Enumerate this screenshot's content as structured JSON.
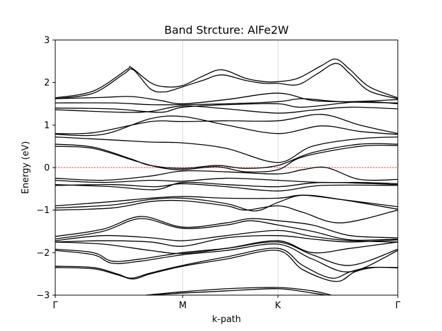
{
  "chart_data": {
    "type": "line",
    "title": "Band Strcture: AlFe2W",
    "xlabel": "k-path",
    "ylabel": "Energy (eV)",
    "ylim": [
      -3,
      3
    ],
    "xlim": [
      0,
      3.6
    ],
    "x_ticks": [
      {
        "label": "Γ",
        "x": 0
      },
      {
        "label": "M",
        "x": 1.34
      },
      {
        "label": "K",
        "x": 2.34
      },
      {
        "label": "Γ",
        "x": 3.6
      }
    ],
    "y_ticks": [
      -3,
      -2,
      -1,
      0,
      1,
      2,
      3
    ],
    "grid": "vertical lines at high-symmetry k-points",
    "fermi_level": 0,
    "colors": {
      "bands": "#000000",
      "fermi_line": "#ff0000",
      "grid": "#d3d3d3"
    },
    "series": [
      {
        "values": [
          [
            0,
            1.64
          ],
          [
            0.4,
            1.8
          ],
          [
            0.75,
            2.3
          ],
          [
            0.8,
            2.35
          ],
          [
            1.0,
            2.0
          ],
          [
            1.15,
            1.9
          ],
          [
            1.34,
            1.93
          ],
          [
            1.55,
            2.15
          ],
          [
            1.75,
            2.3
          ],
          [
            2.0,
            2.1
          ],
          [
            2.2,
            2.02
          ],
          [
            2.34,
            2.02
          ],
          [
            2.55,
            2.1
          ],
          [
            2.8,
            2.4
          ],
          [
            2.95,
            2.55
          ],
          [
            3.1,
            2.3
          ],
          [
            3.3,
            1.9
          ],
          [
            3.6,
            1.64
          ]
        ]
      },
      {
        "values": [
          [
            0,
            1.62
          ],
          [
            0.4,
            1.75
          ],
          [
            0.72,
            2.2
          ],
          [
            0.82,
            2.3
          ],
          [
            1.0,
            1.85
          ],
          [
            1.15,
            1.78
          ],
          [
            1.34,
            1.9
          ],
          [
            1.55,
            2.05
          ],
          [
            1.75,
            2.18
          ],
          [
            2.0,
            2.05
          ],
          [
            2.2,
            1.98
          ],
          [
            2.34,
            1.98
          ],
          [
            2.55,
            1.95
          ],
          [
            2.75,
            2.2
          ],
          [
            2.95,
            2.45
          ],
          [
            3.1,
            2.2
          ],
          [
            3.3,
            1.8
          ],
          [
            3.6,
            1.62
          ]
        ]
      },
      {
        "values": [
          [
            0,
            1.62
          ],
          [
            0.5,
            1.65
          ],
          [
            0.8,
            1.67
          ],
          [
            1.1,
            1.58
          ],
          [
            1.34,
            1.5
          ],
          [
            1.8,
            1.6
          ],
          [
            2.34,
            1.75
          ],
          [
            2.7,
            1.58
          ],
          [
            3.1,
            1.55
          ],
          [
            3.6,
            1.6
          ]
        ]
      },
      {
        "values": [
          [
            0,
            1.52
          ],
          [
            0.6,
            1.52
          ],
          [
            1.0,
            1.48
          ],
          [
            1.34,
            1.48
          ],
          [
            1.8,
            1.5
          ],
          [
            2.34,
            1.55
          ],
          [
            2.6,
            1.62
          ],
          [
            3.0,
            1.55
          ],
          [
            3.6,
            1.52
          ]
        ]
      },
      {
        "values": [
          [
            0,
            1.4
          ],
          [
            0.6,
            1.38
          ],
          [
            1.1,
            1.3
          ],
          [
            1.34,
            1.42
          ],
          [
            1.8,
            1.48
          ],
          [
            2.34,
            1.5
          ],
          [
            2.6,
            1.42
          ],
          [
            3.2,
            1.55
          ],
          [
            3.6,
            1.5
          ]
        ]
      },
      {
        "values": [
          [
            0,
            1.36
          ],
          [
            0.7,
            1.3
          ],
          [
            1.0,
            1.32
          ],
          [
            1.34,
            1.45
          ],
          [
            1.8,
            1.38
          ],
          [
            2.34,
            1.28
          ],
          [
            2.7,
            1.35
          ],
          [
            3.1,
            1.42
          ],
          [
            3.6,
            1.38
          ]
        ]
      },
      {
        "values": [
          [
            0,
            0.8
          ],
          [
            0.4,
            0.82
          ],
          [
            1.0,
            1.08
          ],
          [
            1.34,
            1.08
          ],
          [
            1.8,
            1.1
          ],
          [
            2.34,
            1.1
          ],
          [
            2.8,
            1.25
          ],
          [
            3.2,
            1.0
          ],
          [
            3.6,
            0.8
          ]
        ]
      },
      {
        "values": [
          [
            0,
            0.78
          ],
          [
            0.5,
            0.78
          ],
          [
            1.0,
            1.15
          ],
          [
            1.34,
            1.2
          ],
          [
            1.8,
            1.0
          ],
          [
            2.34,
            0.8
          ],
          [
            2.8,
            0.98
          ],
          [
            3.2,
            0.85
          ],
          [
            3.6,
            0.78
          ]
        ]
      },
      {
        "values": [
          [
            0,
            0.72
          ],
          [
            0.6,
            0.65
          ],
          [
            1.0,
            0.6
          ],
          [
            1.34,
            0.58
          ],
          [
            1.8,
            0.45
          ],
          [
            2.34,
            0.12
          ],
          [
            2.7,
            0.5
          ],
          [
            3.2,
            0.68
          ],
          [
            3.6,
            0.72
          ]
        ]
      },
      {
        "values": [
          [
            0,
            0.55
          ],
          [
            0.4,
            0.48
          ],
          [
            0.8,
            0.2
          ],
          [
            1.0,
            0.05
          ],
          [
            1.34,
            -0.02
          ],
          [
            1.7,
            0.05
          ],
          [
            2.0,
            -0.02
          ],
          [
            2.34,
            0.05
          ],
          [
            2.7,
            0.35
          ],
          [
            3.2,
            0.55
          ],
          [
            3.6,
            0.55
          ]
        ]
      },
      {
        "values": [
          [
            0,
            0.5
          ],
          [
            0.4,
            0.45
          ],
          [
            0.85,
            0.15
          ],
          [
            1.1,
            0.0
          ],
          [
            1.34,
            -0.05
          ],
          [
            1.7,
            0.02
          ],
          [
            2.0,
            -0.1
          ],
          [
            2.34,
            -0.05
          ],
          [
            2.6,
            0.25
          ],
          [
            3.2,
            0.5
          ],
          [
            3.6,
            0.52
          ]
        ]
      },
      {
        "values": [
          [
            0,
            -0.25
          ],
          [
            0.5,
            -0.3
          ],
          [
            1.0,
            -0.2
          ],
          [
            1.34,
            -0.08
          ],
          [
            1.8,
            -0.1
          ],
          [
            2.34,
            -0.15
          ],
          [
            2.6,
            -0.05
          ],
          [
            2.85,
            0.0
          ],
          [
            3.2,
            -0.28
          ],
          [
            3.6,
            -0.28
          ]
        ]
      },
      {
        "values": [
          [
            0,
            -0.3
          ],
          [
            0.5,
            -0.35
          ],
          [
            1.0,
            -0.3
          ],
          [
            1.34,
            -0.32
          ],
          [
            1.8,
            -0.25
          ],
          [
            2.34,
            -0.3
          ],
          [
            2.8,
            -0.35
          ],
          [
            3.2,
            -0.35
          ],
          [
            3.6,
            -0.38
          ]
        ]
      },
      {
        "values": [
          [
            0,
            -0.4
          ],
          [
            0.6,
            -0.45
          ],
          [
            1.05,
            -0.52
          ],
          [
            1.34,
            -0.35
          ],
          [
            1.8,
            -0.4
          ],
          [
            2.34,
            -0.45
          ],
          [
            2.8,
            -0.35
          ],
          [
            3.6,
            -0.4
          ]
        ]
      },
      {
        "values": [
          [
            0,
            -0.42
          ],
          [
            0.6,
            -0.4
          ],
          [
            1.05,
            -0.45
          ],
          [
            1.34,
            -0.38
          ],
          [
            1.8,
            -0.45
          ],
          [
            2.34,
            -0.55
          ],
          [
            2.8,
            -0.42
          ],
          [
            3.6,
            -0.42
          ]
        ]
      },
      {
        "values": [
          [
            0,
            -0.9
          ],
          [
            0.6,
            -0.8
          ],
          [
            1.0,
            -0.72
          ],
          [
            1.34,
            -0.68
          ],
          [
            1.8,
            -0.72
          ],
          [
            2.34,
            -0.72
          ],
          [
            2.6,
            -0.65
          ],
          [
            3.0,
            -0.75
          ],
          [
            3.6,
            -0.92
          ]
        ]
      },
      {
        "values": [
          [
            0,
            -0.95
          ],
          [
            0.6,
            -0.88
          ],
          [
            1.0,
            -0.75
          ],
          [
            1.34,
            -0.72
          ],
          [
            1.8,
            -0.85
          ],
          [
            2.1,
            -1.02
          ],
          [
            2.34,
            -0.82
          ],
          [
            2.6,
            -0.65
          ],
          [
            3.0,
            -0.75
          ],
          [
            3.6,
            -0.98
          ]
        ]
      },
      {
        "values": [
          [
            0,
            -1.0
          ],
          [
            0.6,
            -0.95
          ],
          [
            1.0,
            -0.8
          ],
          [
            1.34,
            -0.78
          ],
          [
            1.8,
            -0.9
          ],
          [
            2.0,
            -1.0
          ],
          [
            2.34,
            -0.9
          ],
          [
            2.6,
            -1.05
          ],
          [
            3.0,
            -1.3
          ],
          [
            3.6,
            -1.0
          ]
        ]
      },
      {
        "values": [
          [
            0,
            -1.62
          ],
          [
            0.5,
            -1.45
          ],
          [
            0.9,
            -1.15
          ],
          [
            1.34,
            -1.4
          ],
          [
            1.8,
            -1.3
          ],
          [
            2.05,
            -1.2
          ],
          [
            2.34,
            -1.25
          ],
          [
            2.7,
            -1.35
          ],
          [
            3.1,
            -1.6
          ],
          [
            3.6,
            -1.65
          ]
        ]
      },
      {
        "values": [
          [
            0,
            -1.68
          ],
          [
            0.5,
            -1.5
          ],
          [
            0.9,
            -1.2
          ],
          [
            1.34,
            -1.43
          ],
          [
            1.8,
            -1.35
          ],
          [
            2.05,
            -1.25
          ],
          [
            2.34,
            -1.35
          ],
          [
            2.7,
            -1.5
          ],
          [
            3.1,
            -1.7
          ],
          [
            3.6,
            -1.68
          ]
        ]
      },
      {
        "values": [
          [
            0,
            -1.72
          ],
          [
            0.5,
            -1.6
          ],
          [
            1.0,
            -1.65
          ],
          [
            1.34,
            -1.72
          ],
          [
            1.8,
            -1.6
          ],
          [
            2.34,
            -1.48
          ],
          [
            2.7,
            -1.62
          ],
          [
            3.1,
            -1.72
          ],
          [
            3.6,
            -1.75
          ]
        ]
      },
      {
        "values": [
          [
            0,
            -1.75
          ],
          [
            0.5,
            -1.72
          ],
          [
            1.0,
            -1.75
          ],
          [
            1.34,
            -1.85
          ],
          [
            1.8,
            -1.65
          ],
          [
            2.34,
            -1.6
          ],
          [
            2.7,
            -1.68
          ],
          [
            3.1,
            -1.75
          ],
          [
            3.6,
            -1.7
          ]
        ]
      },
      {
        "values": [
          [
            0,
            -1.75
          ],
          [
            0.5,
            -1.8
          ],
          [
            1.0,
            -1.95
          ],
          [
            1.34,
            -2.02
          ],
          [
            1.8,
            -1.9
          ],
          [
            2.34,
            -1.72
          ],
          [
            2.7,
            -2.0
          ],
          [
            3.1,
            -1.9
          ],
          [
            3.6,
            -1.75
          ]
        ]
      },
      {
        "values": [
          [
            0,
            -1.92
          ],
          [
            0.4,
            -2.0
          ],
          [
            0.6,
            -2.2
          ],
          [
            0.9,
            -2.15
          ],
          [
            1.34,
            -2.0
          ],
          [
            1.8,
            -1.9
          ],
          [
            2.34,
            -1.75
          ],
          [
            2.7,
            -2.05
          ],
          [
            3.1,
            -2.3
          ],
          [
            3.6,
            -1.92
          ]
        ]
      },
      {
        "values": [
          [
            0,
            -1.95
          ],
          [
            0.4,
            -2.05
          ],
          [
            0.6,
            -2.25
          ],
          [
            0.9,
            -2.2
          ],
          [
            1.34,
            -2.05
          ],
          [
            1.8,
            -1.95
          ],
          [
            2.34,
            -1.8
          ],
          [
            2.7,
            -2.15
          ],
          [
            3.1,
            -2.45
          ],
          [
            3.6,
            -1.95
          ]
        ]
      },
      {
        "values": [
          [
            0,
            -2.32
          ],
          [
            0.4,
            -2.35
          ],
          [
            0.65,
            -2.5
          ],
          [
            0.8,
            -2.6
          ],
          [
            1.0,
            -2.48
          ],
          [
            1.34,
            -2.3
          ],
          [
            1.8,
            -2.1
          ],
          [
            2.34,
            -1.9
          ],
          [
            2.6,
            -2.3
          ],
          [
            2.9,
            -2.6
          ],
          [
            3.1,
            -2.45
          ],
          [
            3.3,
            -2.35
          ],
          [
            3.6,
            -2.35
          ]
        ]
      },
      {
        "values": [
          [
            0,
            -2.35
          ],
          [
            0.4,
            -2.38
          ],
          [
            0.65,
            -2.52
          ],
          [
            0.82,
            -2.62
          ],
          [
            1.0,
            -2.5
          ],
          [
            1.34,
            -2.32
          ],
          [
            1.8,
            -2.15
          ],
          [
            2.34,
            -1.95
          ],
          [
            2.6,
            -2.4
          ],
          [
            2.95,
            -2.68
          ],
          [
            3.15,
            -2.45
          ],
          [
            3.35,
            -2.35
          ],
          [
            3.6,
            -2.36
          ]
        ]
      },
      {
        "values": [
          [
            0.95,
            -3.0
          ],
          [
            1.34,
            -2.92
          ],
          [
            1.8,
            -2.85
          ],
          [
            2.34,
            -2.82
          ],
          [
            2.7,
            -2.9
          ],
          [
            2.9,
            -3.0
          ]
        ]
      },
      {
        "values": [
          [
            1.0,
            -3.0
          ],
          [
            1.34,
            -2.95
          ],
          [
            1.8,
            -2.9
          ],
          [
            2.34,
            -2.85
          ],
          [
            2.7,
            -2.95
          ],
          [
            2.85,
            -3.0
          ]
        ]
      }
    ]
  }
}
